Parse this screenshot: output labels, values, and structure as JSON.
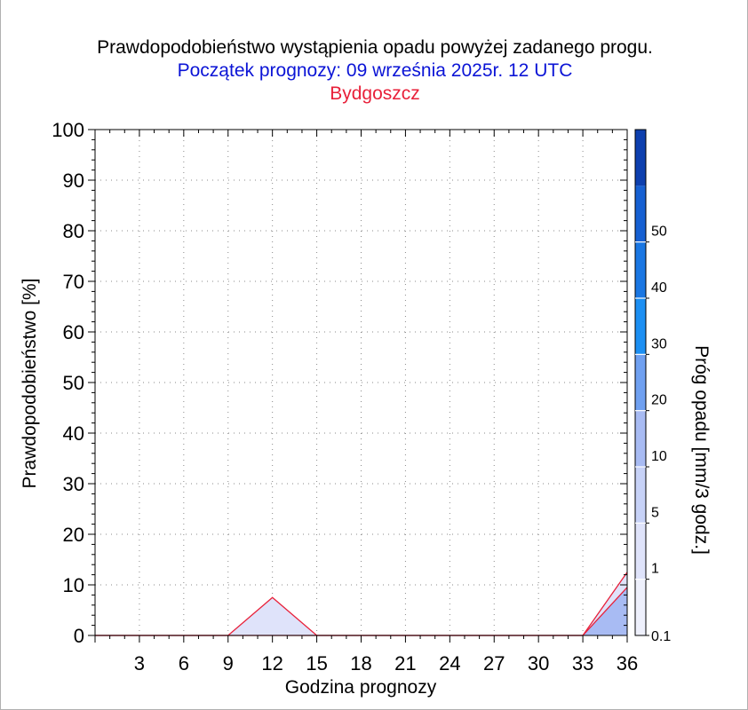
{
  "header": {
    "title": "Prawdopodobieństwo wystąpienia opadu powyżej zadanego progu.",
    "subtitle": "Początek prognozy: 09 września 2025r. 12 UTC",
    "location": "Bydgoszcz"
  },
  "colors": {
    "subtitle": "#0b14d6",
    "location": "#e8213a",
    "line": "#e8213a",
    "grid": "#8a8a8a"
  },
  "chart_data": {
    "type": "area",
    "title": "Prawdopodobieństwo wystąpienia opadu powyżej zadanego progu.",
    "xlabel": "Godzina prognozy",
    "ylabel": "Prawdopodobieństwo [%]",
    "x": [
      0,
      3,
      6,
      9,
      12,
      15,
      18,
      21,
      24,
      27,
      30,
      33,
      36
    ],
    "x_ticks": [
      "3",
      "6",
      "9",
      "12",
      "15",
      "18",
      "21",
      "24",
      "27",
      "30",
      "33",
      "36"
    ],
    "xlim": [
      0,
      36
    ],
    "ylim": [
      0,
      100
    ],
    "y_ticks": [
      "0",
      "10",
      "20",
      "30",
      "40",
      "50",
      "60",
      "70",
      "80",
      "90",
      "100"
    ],
    "grid": true,
    "series": [
      {
        "threshold": "0.1",
        "values": [
          0,
          0,
          0,
          0,
          7.5,
          0,
          0,
          0,
          0,
          0,
          0,
          0,
          12.5
        ],
        "color": "#dfe3fa"
      },
      {
        "threshold": "1",
        "values": [
          0,
          0,
          0,
          0,
          0,
          0,
          0,
          0,
          0,
          0,
          0,
          0,
          9.5
        ],
        "color": "#a8bbf3"
      }
    ],
    "colorbar": {
      "label": "Próg opadu [mm/3 godz.]",
      "ticks": [
        "0.1",
        "1",
        "5",
        "10",
        "20",
        "30",
        "40",
        "50"
      ],
      "bands": [
        {
          "from": "0.1",
          "color": "#eef0fc"
        },
        {
          "from": "1",
          "color": "#dfe3fa"
        },
        {
          "from": "5",
          "color": "#c7d2f7"
        },
        {
          "from": "10",
          "color": "#a8bbf3"
        },
        {
          "from": "20",
          "color": "#6fa0f0"
        },
        {
          "from": "30",
          "color": "#1c8ff2"
        },
        {
          "from": "40",
          "color": "#1a77e3"
        },
        {
          "from": "50",
          "color": "#1660d2"
        },
        {
          "from": "above",
          "color": "#0d3fae"
        }
      ]
    }
  }
}
